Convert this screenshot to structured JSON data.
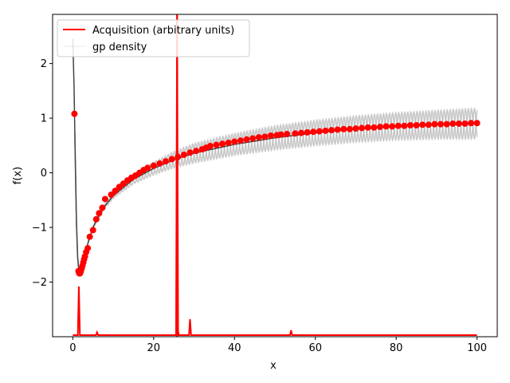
{
  "chart_data": {
    "type": "line",
    "xlabel": "x",
    "ylabel": "f(x)",
    "xlim": [
      -5,
      105
    ],
    "ylim": [
      -3.0,
      2.9
    ],
    "xticks": [
      0,
      20,
      40,
      60,
      80,
      100
    ],
    "yticks": [
      -2,
      -1,
      0,
      1,
      2
    ],
    "xtick_labels": [
      "0",
      "20",
      "40",
      "60",
      "80",
      "100"
    ],
    "ytick_labels": [
      "−2",
      "−1",
      "0",
      "1",
      "2"
    ],
    "grid": false,
    "legend": {
      "position": "top-left",
      "entries": [
        {
          "label": "Acquisition (arbitrary units)",
          "color": "#ff0000",
          "style": "line"
        },
        {
          "label": "gp density",
          "color": "#bfbfbf",
          "style": "faint"
        }
      ]
    },
    "colors": {
      "mean": "#444444",
      "band": "#bbbbbb",
      "acquisition": "#ff0000",
      "observations": "#ff0000"
    },
    "mean_curve": {
      "x": [
        0.0,
        0.3,
        0.6,
        0.9,
        1.2,
        1.5,
        1.8,
        2.1,
        2.4,
        2.7,
        3.0,
        3.5,
        4.0,
        5.0,
        6.0,
        8.0,
        10.0,
        15.0,
        20.0,
        25.0,
        30.0,
        40.0,
        50.0,
        60.0,
        70.0,
        80.0,
        90.0,
        100.0
      ],
      "y": [
        2.45,
        1.6,
        0.3,
        -0.9,
        -1.55,
        -1.8,
        -1.85,
        -1.8,
        -1.72,
        -1.62,
        -1.52,
        -1.36,
        -1.22,
        -1.0,
        -0.85,
        -0.6,
        -0.42,
        -0.12,
        0.08,
        0.24,
        0.36,
        0.52,
        0.64,
        0.73,
        0.8,
        0.85,
        0.88,
        0.9
      ]
    },
    "gp_band_amplitude": {
      "x": [
        0,
        10,
        20,
        30,
        40,
        50,
        60,
        70,
        80,
        90,
        100
      ],
      "amp": [
        0.01,
        0.05,
        0.12,
        0.18,
        0.2,
        0.22,
        0.23,
        0.24,
        0.25,
        0.26,
        0.28
      ]
    },
    "observations": {
      "x": [
        0.4,
        1.4,
        1.6,
        1.8,
        2.0,
        2.2,
        2.4,
        2.6,
        2.8,
        3.0,
        3.3,
        3.7,
        4.2,
        5.0,
        5.8,
        6.5,
        7.3,
        8.0,
        9.5,
        10.5,
        11.5,
        12.5,
        13.5,
        14.5,
        15.5,
        16.5,
        17.5,
        18.5,
        20,
        21.5,
        23,
        24.5,
        26,
        27.5,
        29,
        30.5,
        32,
        33,
        34,
        35.5,
        37,
        38.5,
        40,
        41.5,
        43,
        44.5,
        46,
        47.5,
        49,
        50.5,
        51.5,
        53,
        55,
        56.5,
        58,
        59.5,
        61,
        62.5,
        64,
        65.5,
        67,
        68.5,
        70,
        71.5,
        73,
        74.5,
        76,
        77.5,
        79,
        80.5,
        82,
        83.5,
        85,
        86.5,
        88,
        89.5,
        91,
        92.5,
        94,
        95.5,
        97,
        98.5,
        100
      ],
      "y": [
        1.08,
        -1.8,
        -1.84,
        -1.84,
        -1.8,
        -1.75,
        -1.7,
        -1.64,
        -1.58,
        -1.53,
        -1.45,
        -1.38,
        -1.17,
        -1.05,
        -0.85,
        -0.74,
        -0.64,
        -0.48,
        -0.4,
        -0.33,
        -0.26,
        -0.2,
        -0.14,
        -0.09,
        -0.05,
        0.0,
        0.05,
        0.09,
        0.13,
        0.17,
        0.21,
        0.25,
        0.29,
        0.33,
        0.37,
        0.4,
        0.43,
        0.46,
        0.49,
        0.51,
        0.53,
        0.55,
        0.57,
        0.59,
        0.61,
        0.63,
        0.65,
        0.66,
        0.68,
        0.69,
        0.7,
        0.71,
        0.72,
        0.73,
        0.74,
        0.75,
        0.76,
        0.77,
        0.78,
        0.79,
        0.8,
        0.8,
        0.81,
        0.82,
        0.83,
        0.83,
        0.84,
        0.85,
        0.85,
        0.86,
        0.86,
        0.87,
        0.87,
        0.88,
        0.88,
        0.89,
        0.89,
        0.89,
        0.9,
        0.9,
        0.9,
        0.91,
        0.91
      ]
    },
    "acquisition": {
      "baseline": -2.97,
      "spikes": [
        {
          "x": 1.5,
          "y": -2.08
        },
        {
          "x": 6.0,
          "y": -2.92
        },
        {
          "x": 25.8,
          "y": 2.9
        },
        {
          "x": 26.0,
          "y": -2.88
        },
        {
          "x": 29.0,
          "y": -2.68
        },
        {
          "x": 54.0,
          "y": -2.88
        }
      ],
      "x_range": [
        0,
        100
      ]
    },
    "vertical_line_x": 25.8
  }
}
